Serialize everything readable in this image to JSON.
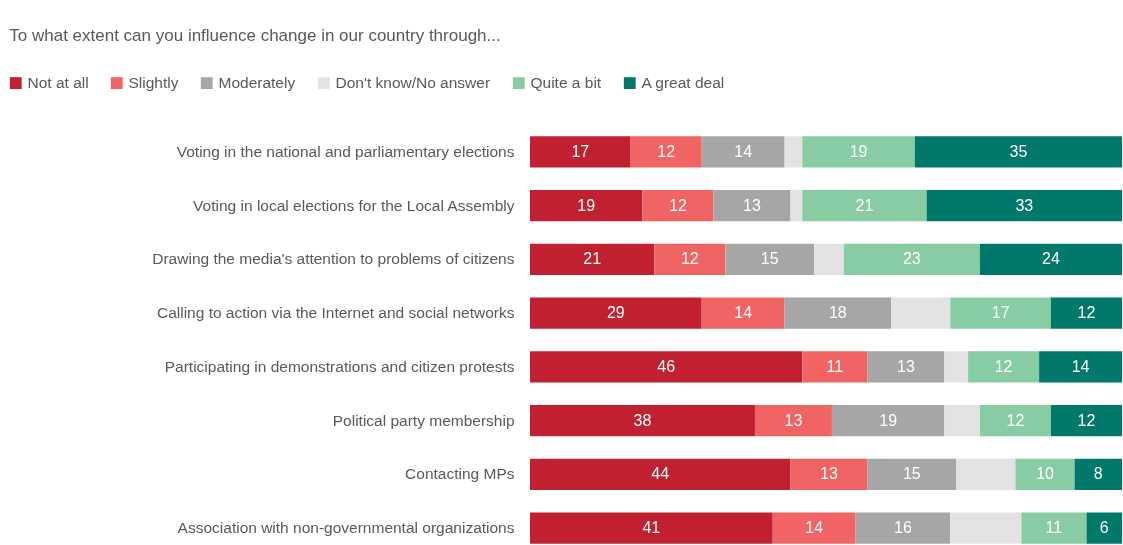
{
  "chart_data": {
    "type": "bar",
    "orientation": "horizontal",
    "stacked": true,
    "title": "To what extent can you influence change in our country through...",
    "legend": "top",
    "categories": [
      "Voting in the national and parliamentary elections",
      "Voting in local elections for the Local Assembly",
      "Drawing the media's attention to problems of citizens",
      "Calling to action via the Internet and social networks",
      "Participating in demonstrations and citizen protests",
      "Political party membership",
      "Contacting MPs",
      "Association with non-governmental organizations"
    ],
    "series": [
      {
        "name": "Not at all",
        "color": "#c0202f",
        "values": [
          17,
          19,
          21,
          29,
          46,
          38,
          44,
          41
        ],
        "value_labels": [
          "17",
          "19",
          "21",
          "29",
          "46",
          "38",
          "44",
          "41"
        ]
      },
      {
        "name": "Slightly",
        "color": "#f06464",
        "values": [
          12,
          12,
          12,
          14,
          11,
          13,
          13,
          14
        ],
        "value_labels": [
          "12",
          "12",
          "12",
          "14",
          "11",
          "13",
          "13",
          "14"
        ]
      },
      {
        "name": "Moderately",
        "color": "#a6a6a6",
        "values": [
          14,
          13,
          15,
          18,
          13,
          19,
          15,
          16
        ],
        "value_labels": [
          "14",
          "13",
          "15",
          "18",
          "13",
          "19",
          "15",
          "16"
        ]
      },
      {
        "name": "Don't know/No answer",
        "color": "#e3e3e3",
        "values": [
          3,
          2,
          5,
          10,
          4,
          6,
          10,
          12
        ],
        "value_labels": [
          null,
          null,
          null,
          null,
          null,
          null,
          null,
          null
        ]
      },
      {
        "name": "Quite a bit",
        "color": "#88cca4",
        "values": [
          19,
          21,
          23,
          17,
          12,
          12,
          10,
          11
        ],
        "value_labels": [
          "19",
          "21",
          "23",
          "17",
          "12",
          "12",
          "10",
          "11"
        ]
      },
      {
        "name": "A great deal",
        "color": "#00796b",
        "values": [
          35,
          33,
          24,
          12,
          14,
          12,
          8,
          6
        ],
        "value_labels": [
          "35",
          "33",
          "24",
          "12",
          "14",
          "12",
          "8",
          "6"
        ]
      }
    ]
  }
}
